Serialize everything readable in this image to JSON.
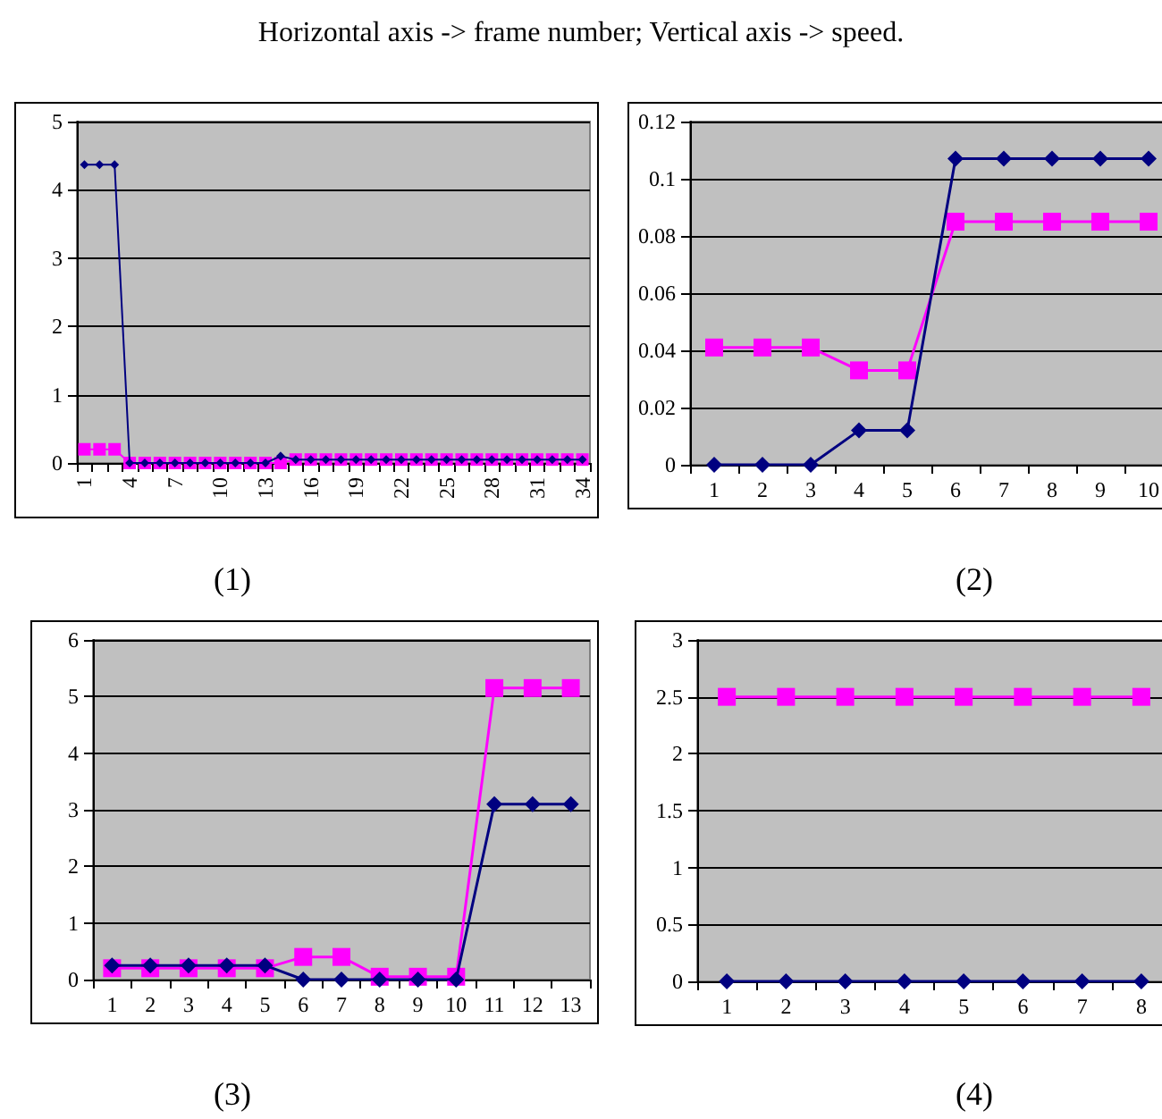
{
  "chart_data": [
    {
      "type": "line",
      "title": "Horizontal axis -> frame number; Vertical axis -> speed.",
      "annotations": [
        "(1)"
      ],
      "categories": [
        "1",
        null,
        null,
        "4",
        null,
        null,
        "7",
        null,
        null,
        "10",
        null,
        null,
        "13",
        null,
        null,
        "16",
        null,
        null,
        "19",
        null,
        null,
        "22",
        null,
        null,
        "25",
        null,
        null,
        "28",
        null,
        null,
        "31",
        null,
        null,
        "34"
      ],
      "ylim": [
        0,
        5
      ],
      "yticks": [
        0,
        1,
        2,
        3,
        4,
        5
      ],
      "grid": "y",
      "series": [
        {
          "color": "#000080",
          "marker": "diamond",
          "values": [
            4.37,
            4.37,
            4.37,
            0,
            0,
            0,
            0,
            0,
            0,
            0,
            0,
            0,
            0,
            0.1,
            0.05,
            0.05,
            0.05,
            0.05,
            0.05,
            0.05,
            0.05,
            0.05,
            0.05,
            0.05,
            0.05,
            0.05,
            0.05,
            0.05,
            0.05,
            0.05,
            0.05,
            0.05,
            0.05,
            0.05
          ]
        },
        {
          "color": "#ff00ff",
          "marker": "square",
          "values": [
            0.2,
            0.2,
            0.2,
            0,
            0,
            0,
            0,
            0,
            0,
            0,
            0,
            0,
            0,
            0,
            0.05,
            0.05,
            0.05,
            0.05,
            0.05,
            0.05,
            0.05,
            0.05,
            0.05,
            0.05,
            0.05,
            0.05,
            0.05,
            0.05,
            0.05,
            0.05,
            0.05,
            0.05,
            0.05,
            0.05
          ]
        }
      ]
    },
    {
      "type": "line",
      "annotations": [
        "(2)"
      ],
      "categories": [
        "1",
        "2",
        "3",
        "4",
        "5",
        "6",
        "7",
        "8",
        "9",
        "10"
      ],
      "ylim": [
        0,
        0.12
      ],
      "yticks": [
        0,
        0.02,
        0.04,
        0.06,
        0.08,
        0.1,
        0.12
      ],
      "grid": "y",
      "series": [
        {
          "color": "#000080",
          "marker": "diamond",
          "values": [
            0,
            0,
            0,
            0.012,
            0.012,
            0.107,
            0.107,
            0.107,
            0.107,
            0.107
          ]
        },
        {
          "color": "#ff00ff",
          "marker": "square",
          "values": [
            0.041,
            0.041,
            0.041,
            0.033,
            0.033,
            0.085,
            0.085,
            0.085,
            0.085,
            0.085
          ]
        }
      ]
    },
    {
      "type": "line",
      "annotations": [
        "(3)"
      ],
      "categories": [
        "1",
        "2",
        "3",
        "4",
        "5",
        "6",
        "7",
        "8",
        "9",
        "10",
        "11",
        "12",
        "13"
      ],
      "ylim": [
        0,
        6
      ],
      "yticks": [
        0,
        1,
        2,
        3,
        4,
        5,
        6
      ],
      "grid": "y",
      "series": [
        {
          "color": "#000080",
          "marker": "diamond",
          "values": [
            0.25,
            0.25,
            0.25,
            0.25,
            0.25,
            0,
            0,
            0,
            0,
            0,
            3.1,
            3.1,
            3.1
          ]
        },
        {
          "color": "#ff00ff",
          "marker": "square",
          "values": [
            0.2,
            0.2,
            0.2,
            0.2,
            0.2,
            0.4,
            0.4,
            0.05,
            0.05,
            0.05,
            5.15,
            5.15,
            5.15
          ]
        }
      ]
    },
    {
      "type": "line",
      "annotations": [
        "(4)"
      ],
      "categories": [
        "1",
        "2",
        "3",
        "4",
        "5",
        "6",
        "7",
        "8"
      ],
      "ylim": [
        0,
        3
      ],
      "yticks": [
        0,
        0.5,
        1,
        1.5,
        2,
        2.5,
        3
      ],
      "grid": "y",
      "series": [
        {
          "color": "#000080",
          "marker": "diamond",
          "values": [
            0,
            0,
            0,
            0,
            0,
            0,
            0,
            0
          ]
        },
        {
          "color": "#ff00ff",
          "marker": "square",
          "values": [
            2.5,
            2.5,
            2.5,
            2.5,
            2.5,
            2.5,
            2.5,
            2.5
          ]
        }
      ]
    }
  ]
}
